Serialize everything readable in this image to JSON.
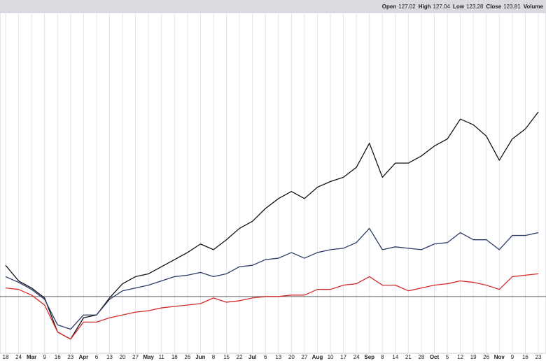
{
  "chart_data": {
    "type": "line",
    "header": [
      {
        "label": "Open",
        "value": "127.02"
      },
      {
        "label": "High",
        "value": "127.04"
      },
      {
        "label": "Low",
        "value": "123.28"
      },
      {
        "label": "Close",
        "value": "123.81"
      },
      {
        "label": "Volume",
        "value": ""
      }
    ],
    "categories": [
      "18",
      "24",
      "Mar",
      "9",
      "16",
      "23",
      "Apr",
      "6",
      "13",
      "20",
      "27",
      "May",
      "11",
      "18",
      "26",
      "Jun",
      "8",
      "15",
      "22",
      "Jul",
      "6",
      "13",
      "20",
      "27",
      "Aug",
      "10",
      "17",
      "24",
      "Sep",
      "8",
      "14",
      "21",
      "28",
      "Oct",
      "5",
      "12",
      "19",
      "26",
      "Nov",
      "9",
      "16",
      "23"
    ],
    "series": [
      {
        "color": "#111111",
        "values": [
          22,
          11,
          6,
          -1,
          -25,
          -30,
          -15,
          -13,
          -1,
          9,
          14,
          16,
          21,
          26,
          31,
          37,
          33,
          40,
          48,
          53,
          62,
          69,
          74,
          69,
          77,
          81,
          84,
          91,
          108,
          84,
          94,
          94,
          99,
          106,
          111,
          125,
          121,
          113,
          96,
          111,
          118,
          130
        ]
      },
      {
        "color": "#2b3a67",
        "values": [
          14,
          10,
          5,
          -2,
          -20,
          -23,
          -13,
          -13,
          -2,
          4,
          6,
          8,
          11,
          14,
          15,
          17,
          14,
          16,
          21,
          22,
          26,
          27,
          31,
          27,
          31,
          33,
          34,
          38,
          48,
          33,
          35,
          34,
          33,
          37,
          38,
          45,
          40,
          40,
          33,
          43,
          43,
          45
        ]
      },
      {
        "color": "#d42a2a",
        "values": [
          6,
          5,
          1,
          -6,
          -25,
          -30,
          -18,
          -18,
          -15,
          -13,
          -11,
          -10,
          -8,
          -7,
          -6,
          -5,
          -1,
          -4,
          -3,
          -1,
          0,
          0,
          1,
          1,
          5,
          5,
          8,
          9,
          14,
          8,
          8,
          4,
          6,
          8,
          9,
          11,
          10,
          8,
          5,
          14,
          15,
          16
        ]
      }
    ],
    "baseline": 0,
    "ylim": [
      -40,
      200
    ],
    "grid": true
  }
}
